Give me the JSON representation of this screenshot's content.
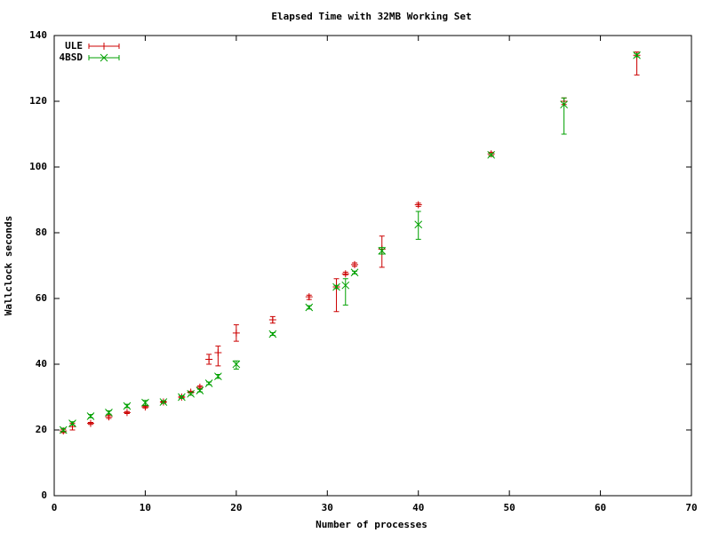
{
  "chart_data": {
    "type": "scatter",
    "title": "Elapsed Time with 32MB Working Set",
    "x_label": "Number of processes",
    "y_label": "Wallclock seconds",
    "xlim": [
      0,
      70
    ],
    "xticks": [
      0,
      10,
      20,
      30,
      40,
      50,
      60,
      70
    ],
    "ylim": [
      0,
      140
    ],
    "yticks": [
      0,
      20,
      40,
      60,
      80,
      100,
      120,
      140
    ],
    "legend": "top-left",
    "series": [
      {
        "name": "ULE",
        "color": "#cc0000",
        "marker": "plus",
        "x": [
          1,
          2,
          4,
          6,
          8,
          10,
          12,
          14,
          15,
          16,
          17,
          18,
          20,
          24,
          28,
          31,
          32,
          33,
          36,
          40,
          48,
          56,
          64
        ],
        "values": [
          19.7,
          21,
          22,
          24,
          25.3,
          27,
          28.5,
          30,
          31.5,
          33,
          41.5,
          43.5,
          49.5,
          53.5,
          60.5,
          63.5,
          67.5,
          70.3,
          75,
          88.5,
          104,
          120,
          134
        ],
        "low": [
          19.2,
          20,
          21.7,
          23.5,
          25,
          26.7,
          28.2,
          29.7,
          31.2,
          32.6,
          40,
          39.5,
          47,
          52.5,
          59.7,
          56,
          67.2,
          69.8,
          69.5,
          88,
          103.5,
          119,
          128
        ],
        "high": [
          20.2,
          22,
          22.3,
          24.5,
          25.6,
          27.3,
          28.8,
          30.3,
          31.8,
          33.4,
          43,
          45.5,
          52,
          54.5,
          61,
          66,
          68,
          70.8,
          79,
          89,
          104.5,
          121,
          135
        ]
      },
      {
        "name": "4BSD",
        "color": "#00a000",
        "marker": "cross",
        "x": [
          1,
          2,
          4,
          6,
          8,
          10,
          12,
          14,
          15,
          16,
          17,
          18,
          20,
          24,
          28,
          31,
          32,
          33,
          36,
          40,
          48,
          56,
          64
        ],
        "values": [
          20,
          22,
          24.2,
          25.3,
          27.3,
          28.3,
          28.5,
          30,
          31,
          32,
          34.2,
          36.3,
          40,
          49.2,
          57.3,
          63.5,
          64,
          67.9,
          74.5,
          82.5,
          103.7,
          119,
          134
        ],
        "low": [
          19.5,
          21.5,
          23.7,
          24.8,
          26.8,
          27.5,
          28.1,
          29.6,
          30.6,
          31.6,
          33.8,
          35.7,
          38.5,
          48.8,
          56.8,
          63,
          58,
          67.5,
          73.5,
          78,
          103.3,
          110,
          133.5
        ],
        "high": [
          20.5,
          22.5,
          24.7,
          25.8,
          27.8,
          29,
          28.9,
          30.4,
          31.4,
          32.4,
          34.6,
          36.9,
          41,
          49.6,
          57.8,
          64,
          66,
          68.3,
          75.5,
          86.5,
          104.1,
          121,
          134.5
        ]
      }
    ]
  }
}
